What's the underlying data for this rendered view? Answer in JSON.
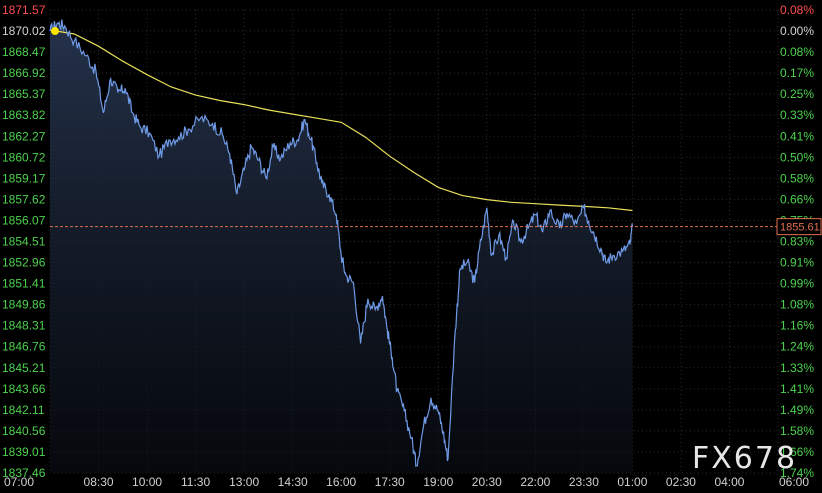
{
  "watermark": "FX678",
  "colors": {
    "background": "#000000",
    "price_line": "#6f9ae6",
    "moving_average": "#e8df5a",
    "grid": "#2a2a2a",
    "up_label": "#ff4d4d",
    "down_label": "#4dd24d",
    "axis_text": "#d0d0d0",
    "reference_line": "#e07050",
    "marker": "#ffe600"
  },
  "chart_data": {
    "type": "line",
    "y_axis_left": [
      "1871.57",
      "1870.02",
      "1868.47",
      "1866.92",
      "1865.37",
      "1863.82",
      "1862.27",
      "1860.72",
      "1859.17",
      "1857.62",
      "1856.07",
      "1854.51",
      "1852.96",
      "1851.41",
      "1849.86",
      "1848.31",
      "1846.76",
      "1845.21",
      "1843.66",
      "1842.11",
      "1840.56",
      "1839.01",
      "1837.46"
    ],
    "y_axis_right": [
      "0.08%",
      "0.00%",
      "0.08%",
      "0.17%",
      "0.25%",
      "0.33%",
      "0.41%",
      "0.50%",
      "0.58%",
      "0.66%",
      "0.75%",
      "0.83%",
      "0.91%",
      "0.99%",
      "1.08%",
      "1.16%",
      "1.24%",
      "1.33%",
      "1.41%",
      "1.49%",
      "1.58%",
      "1.66%",
      "1.74%"
    ],
    "x_axis": [
      "07:00",
      "08:30",
      "10:00",
      "11:30",
      "13:00",
      "14:30",
      "16:00",
      "17:30",
      "19:00",
      "20:30",
      "22:00",
      "23:30",
      "01:00",
      "02:30",
      "04:00",
      "06:00"
    ],
    "ylim": [
      1837.46,
      1871.57
    ],
    "reference_price": 1870.02,
    "current_price_label": "1855.61",
    "current_price": 1855.61,
    "price_series": [
      {
        "t": 0.0,
        "p": 1870.02
      },
      {
        "t": 0.15,
        "p": 1870.6
      },
      {
        "t": 0.3,
        "p": 1870.4
      },
      {
        "t": 0.5,
        "p": 1869.3
      },
      {
        "t": 0.75,
        "p": 1868.2
      },
      {
        "t": 0.95,
        "p": 1867.0
      },
      {
        "t": 1.1,
        "p": 1864.0
      },
      {
        "t": 1.25,
        "p": 1866.5
      },
      {
        "t": 1.4,
        "p": 1865.5
      },
      {
        "t": 1.55,
        "p": 1865.8
      },
      {
        "t": 1.7,
        "p": 1864.0
      },
      {
        "t": 1.85,
        "p": 1863.0
      },
      {
        "t": 2.05,
        "p": 1862.5
      },
      {
        "t": 2.25,
        "p": 1860.8
      },
      {
        "t": 2.45,
        "p": 1862.0
      },
      {
        "t": 2.65,
        "p": 1862.2
      },
      {
        "t": 2.85,
        "p": 1862.8
      },
      {
        "t": 3.1,
        "p": 1863.6
      },
      {
        "t": 3.35,
        "p": 1863.2
      },
      {
        "t": 3.55,
        "p": 1862.4
      },
      {
        "t": 3.7,
        "p": 1861.0
      },
      {
        "t": 3.85,
        "p": 1858.0
      },
      {
        "t": 4.0,
        "p": 1859.8
      },
      {
        "t": 4.15,
        "p": 1861.5
      },
      {
        "t": 4.3,
        "p": 1860.5
      },
      {
        "t": 4.45,
        "p": 1859.2
      },
      {
        "t": 4.6,
        "p": 1861.5
      },
      {
        "t": 4.75,
        "p": 1860.6
      },
      {
        "t": 4.95,
        "p": 1861.8
      },
      {
        "t": 5.1,
        "p": 1862.0
      },
      {
        "t": 5.25,
        "p": 1863.5
      },
      {
        "t": 5.38,
        "p": 1862.0
      },
      {
        "t": 5.5,
        "p": 1860.3
      },
      {
        "t": 5.6,
        "p": 1858.8
      },
      {
        "t": 5.75,
        "p": 1858.0
      },
      {
        "t": 5.9,
        "p": 1856.5
      },
      {
        "t": 6.0,
        "p": 1853.5
      },
      {
        "t": 6.1,
        "p": 1852.0
      },
      {
        "t": 6.25,
        "p": 1851.5
      },
      {
        "t": 6.4,
        "p": 1847.0
      },
      {
        "t": 6.55,
        "p": 1850.3
      },
      {
        "t": 6.7,
        "p": 1849.5
      },
      {
        "t": 6.85,
        "p": 1850.5
      },
      {
        "t": 6.95,
        "p": 1848.0
      },
      {
        "t": 7.05,
        "p": 1846.0
      },
      {
        "t": 7.15,
        "p": 1843.5
      },
      {
        "t": 7.3,
        "p": 1842.0
      },
      {
        "t": 7.45,
        "p": 1840.0
      },
      {
        "t": 7.55,
        "p": 1838.0
      },
      {
        "t": 7.7,
        "p": 1841.0
      },
      {
        "t": 7.85,
        "p": 1843.0
      },
      {
        "t": 8.0,
        "p": 1842.0
      },
      {
        "t": 8.1,
        "p": 1840.5
      },
      {
        "t": 8.2,
        "p": 1838.5
      },
      {
        "t": 8.35,
        "p": 1848.0
      },
      {
        "t": 8.45,
        "p": 1852.5
      },
      {
        "t": 8.6,
        "p": 1853.0
      },
      {
        "t": 8.75,
        "p": 1851.5
      },
      {
        "t": 8.85,
        "p": 1854.0
      },
      {
        "t": 9.0,
        "p": 1857.0
      },
      {
        "t": 9.1,
        "p": 1853.5
      },
      {
        "t": 9.25,
        "p": 1855.0
      },
      {
        "t": 9.4,
        "p": 1853.3
      },
      {
        "t": 9.55,
        "p": 1856.0
      },
      {
        "t": 9.7,
        "p": 1854.5
      },
      {
        "t": 9.85,
        "p": 1855.5
      },
      {
        "t": 10.0,
        "p": 1856.5
      },
      {
        "t": 10.15,
        "p": 1855.2
      },
      {
        "t": 10.3,
        "p": 1856.8
      },
      {
        "t": 10.5,
        "p": 1855.5
      },
      {
        "t": 10.65,
        "p": 1856.6
      },
      {
        "t": 10.85,
        "p": 1855.8
      },
      {
        "t": 11.0,
        "p": 1857.0
      },
      {
        "t": 11.1,
        "p": 1856.0
      },
      {
        "t": 11.2,
        "p": 1855.2
      },
      {
        "t": 11.35,
        "p": 1854.0
      },
      {
        "t": 11.45,
        "p": 1853.0
      },
      {
        "t": 11.6,
        "p": 1853.5
      },
      {
        "t": 11.8,
        "p": 1853.8
      },
      {
        "t": 11.95,
        "p": 1854.3
      },
      {
        "t": 12.0,
        "p": 1855.61
      }
    ],
    "ma_series": [
      {
        "t": 0.0,
        "p": 1870.1
      },
      {
        "t": 0.5,
        "p": 1869.8
      },
      {
        "t": 1.0,
        "p": 1868.9
      },
      {
        "t": 1.5,
        "p": 1867.8
      },
      {
        "t": 2.0,
        "p": 1866.8
      },
      {
        "t": 2.5,
        "p": 1865.9
      },
      {
        "t": 3.0,
        "p": 1865.3
      },
      {
        "t": 3.5,
        "p": 1864.9
      },
      {
        "t": 4.0,
        "p": 1864.6
      },
      {
        "t": 4.5,
        "p": 1864.2
      },
      {
        "t": 5.0,
        "p": 1863.9
      },
      {
        "t": 5.5,
        "p": 1863.6
      },
      {
        "t": 6.0,
        "p": 1863.3
      },
      {
        "t": 6.5,
        "p": 1862.2
      },
      {
        "t": 7.0,
        "p": 1860.8
      },
      {
        "t": 7.5,
        "p": 1859.6
      },
      {
        "t": 8.0,
        "p": 1858.5
      },
      {
        "t": 8.5,
        "p": 1857.9
      },
      {
        "t": 9.0,
        "p": 1857.6
      },
      {
        "t": 9.5,
        "p": 1857.4
      },
      {
        "t": 10.0,
        "p": 1857.3
      },
      {
        "t": 10.5,
        "p": 1857.2
      },
      {
        "t": 11.0,
        "p": 1857.1
      },
      {
        "t": 11.5,
        "p": 1857.0
      },
      {
        "t": 12.0,
        "p": 1856.8
      }
    ],
    "grid": true
  }
}
